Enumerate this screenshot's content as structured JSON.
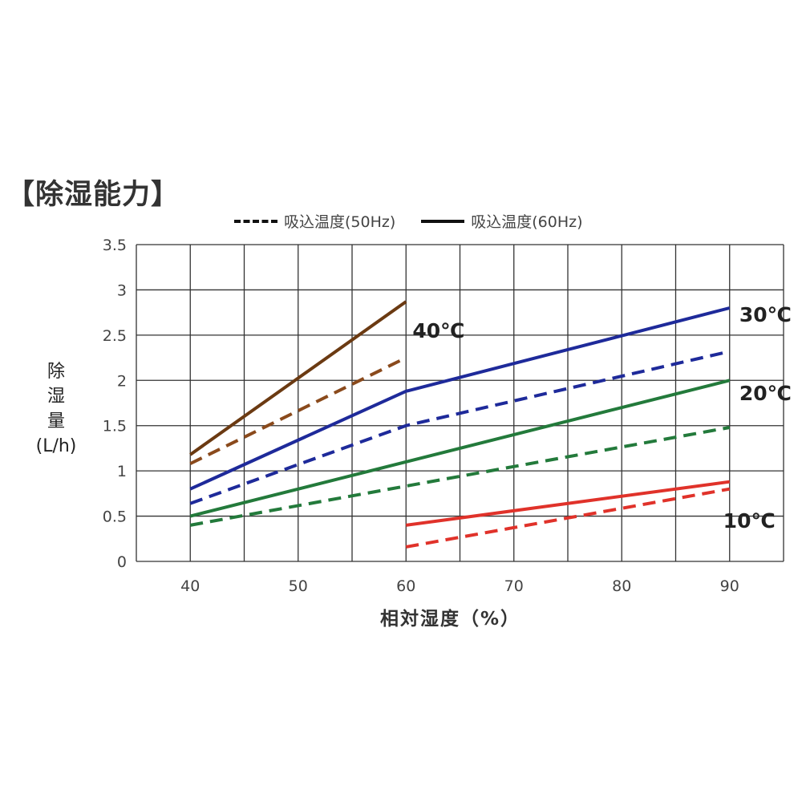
{
  "chart_data": {
    "type": "line",
    "title": "【除湿能力】",
    "xlabel": "相対湿度（%）",
    "ylabel_lines": [
      "除",
      "湿",
      "量",
      "(L/h)"
    ],
    "xlim": [
      35,
      95
    ],
    "ylim": [
      0,
      3.5
    ],
    "x_ticks": [
      {
        "value": 40,
        "label": "40"
      },
      {
        "value": 50,
        "label": "50"
      },
      {
        "value": 60,
        "label": "60"
      },
      {
        "value": 70,
        "label": "70"
      },
      {
        "value": 80,
        "label": "80"
      },
      {
        "value": 90,
        "label": "90"
      }
    ],
    "y_ticks": [
      {
        "value": 0,
        "label": "0"
      },
      {
        "value": 0.5,
        "label": "0.5"
      },
      {
        "value": 1,
        "label": "1"
      },
      {
        "value": 1.5,
        "label": "1.5"
      },
      {
        "value": 2,
        "label": "2"
      },
      {
        "value": 2.5,
        "label": "2.5"
      },
      {
        "value": 3,
        "label": "3"
      },
      {
        "value": 3.5,
        "label": "3.5"
      }
    ],
    "grid_x": [
      35,
      40,
      45,
      50,
      55,
      60,
      65,
      70,
      75,
      80,
      85,
      90,
      95
    ],
    "grid_y": [
      0,
      0.5,
      1,
      1.5,
      2,
      2.5,
      3,
      3.5
    ],
    "grid": true,
    "legend": {
      "position": "top",
      "items": [
        {
          "label": "吸込温度(50Hz)",
          "style": "dashed"
        },
        {
          "label": "吸込温度(60Hz)",
          "style": "solid"
        }
      ]
    },
    "series": [
      {
        "temp": "40℃",
        "freq": "60Hz",
        "style": "solid",
        "color": "#6b3a12",
        "x": [
          40,
          60
        ],
        "y": [
          1.18,
          2.87
        ]
      },
      {
        "temp": "40℃",
        "freq": "50Hz",
        "style": "dashed",
        "color": "#8a4a1c",
        "x": [
          40,
          60
        ],
        "y": [
          1.08,
          2.25
        ]
      },
      {
        "temp": "30℃",
        "freq": "60Hz",
        "style": "solid",
        "color": "#1e2a9a",
        "x": [
          40,
          60,
          90
        ],
        "y": [
          0.8,
          1.88,
          2.8
        ]
      },
      {
        "temp": "30℃",
        "freq": "50Hz",
        "style": "dashed",
        "color": "#1e2a9a",
        "x": [
          40,
          60,
          90
        ],
        "y": [
          0.64,
          1.5,
          2.32
        ]
      },
      {
        "temp": "20℃",
        "freq": "60Hz",
        "style": "solid",
        "color": "#237a3b",
        "x": [
          40,
          90
        ],
        "y": [
          0.5,
          2.0
        ]
      },
      {
        "temp": "20℃",
        "freq": "50Hz",
        "style": "dashed",
        "color": "#237a3b",
        "x": [
          40,
          90
        ],
        "y": [
          0.4,
          1.48
        ]
      },
      {
        "temp": "10℃",
        "freq": "60Hz",
        "style": "solid",
        "color": "#e0322a",
        "x": [
          60,
          90
        ],
        "y": [
          0.4,
          0.88
        ]
      },
      {
        "temp": "10℃",
        "freq": "50Hz",
        "style": "dashed",
        "color": "#e0322a",
        "x": [
          60,
          90
        ],
        "y": [
          0.16,
          0.8
        ]
      }
    ],
    "curve_labels": [
      {
        "text": "40℃",
        "x": 60.6,
        "y": 2.55
      },
      {
        "text": "30℃",
        "x": 90.9,
        "y": 2.73
      },
      {
        "text": "20℃",
        "x": 90.9,
        "y": 1.86
      },
      {
        "text": "10℃",
        "x": 89.4,
        "y": 0.45
      }
    ]
  }
}
